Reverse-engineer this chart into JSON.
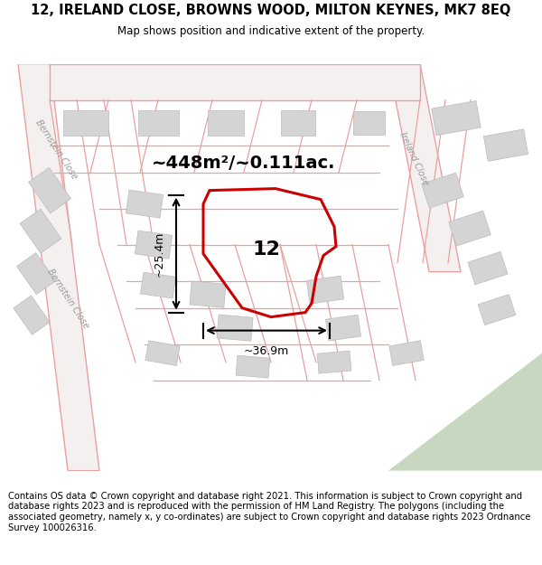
{
  "title": "12, IRELAND CLOSE, BROWNS WOOD, MILTON KEYNES, MK7 8EQ",
  "subtitle": "Map shows position and indicative extent of the property.",
  "footer": "Contains OS data © Crown copyright and database right 2021. This information is subject to Crown copyright and database rights 2023 and is reproduced with the permission of HM Land Registry. The polygons (including the associated geometry, namely x, y co-ordinates) are subject to Crown copyright and database rights 2023 Ordnance Survey 100026316.",
  "area_label": "~448m²/~0.111ac.",
  "number_label": "12",
  "dim_width": "~36.9m",
  "dim_height": "~25.4m",
  "title_fontsize": 10.5,
  "subtitle_fontsize": 8.5,
  "footer_fontsize": 7.2,
  "area_fontsize": 14,
  "number_fontsize": 16,
  "dim_fontsize": 9,
  "street_fontsize": 7,
  "bg_color": "#eeecec",
  "road_color": "#e8a0a0",
  "road_fill": "#f5f0f0",
  "building_color": "#d4d4d4",
  "building_edge": "#bbbbbb",
  "property_color": "#cc0000",
  "green_color": "#c8d8c0",
  "street_label_color": "#999999",
  "figsize": [
    6.0,
    6.25
  ],
  "dpi": 100
}
